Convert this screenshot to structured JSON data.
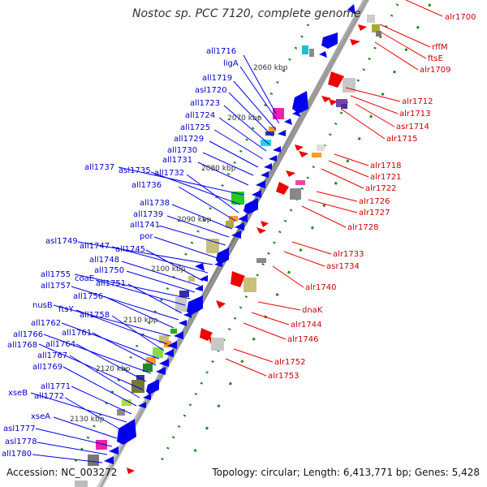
{
  "title": "Nostoc sp. PCC 7120, complete genome",
  "footer": {
    "accession": "Accession: NC_003272",
    "stats": "Topology: circular; Length: 6,413,771 bp; Genes: 5,428"
  },
  "ticks": [
    "2060 kbp",
    "2070 kbp",
    "2080 kbp",
    "2090 kbp",
    "2100 kbp",
    "2110 kbp",
    "2120 kbp",
    "2130 kbp"
  ],
  "left_genes": [
    "all1716",
    "ligA",
    "all1719",
    "asl1720",
    "all1723",
    "all1724",
    "all1725",
    "all1729",
    "all1730",
    "all1731",
    "all1737",
    "asl1735",
    "all1732",
    "all1736",
    "all1738",
    "all1739",
    "all1741",
    "por",
    "asl1749",
    "all1747",
    "all1745",
    "all1748",
    "all1750",
    "all1755",
    "coaE",
    "all1751",
    "all1757",
    "all1756",
    "nusB",
    "ftsY",
    "all1758",
    "all1762",
    "all1761",
    "all1766",
    "all1764",
    "all1768",
    "all1767",
    "all1769",
    "all1771",
    "xseB",
    "all1772",
    "xseA",
    "asl1777",
    "asl1778",
    "all1780"
  ],
  "right_genes": [
    "alr1700",
    "rffM",
    "ftsE",
    "alr1709",
    "alr1712",
    "alr1713",
    "asr1714",
    "alr1715",
    "alr1718",
    "alr1721",
    "alr1722",
    "alr1726",
    "alr1727",
    "alr1728",
    "alr1733",
    "asr1734",
    "alr1740",
    "dnaK",
    "alr1744",
    "alr1746",
    "alr1752",
    "alr1753"
  ],
  "colors": {
    "minus_strand": "#0000ee",
    "plus_strand": "#ee0000",
    "backbone": "#888888",
    "ticks": "#228b22"
  }
}
